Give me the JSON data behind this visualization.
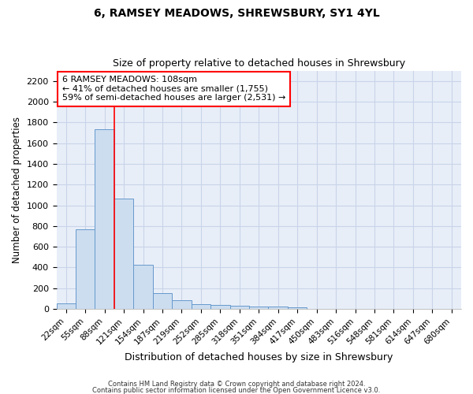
{
  "title": "6, RAMSEY MEADOWS, SHREWSBURY, SY1 4YL",
  "subtitle": "Size of property relative to detached houses in Shrewsbury",
  "xlabel": "Distribution of detached houses by size in Shrewsbury",
  "ylabel": "Number of detached properties",
  "bar_color": "#ccddf0",
  "bar_edge_color": "#6699cc",
  "bin_labels": [
    "22sqm",
    "55sqm",
    "88sqm",
    "121sqm",
    "154sqm",
    "187sqm",
    "219sqm",
    "252sqm",
    "285sqm",
    "318sqm",
    "351sqm",
    "384sqm",
    "417sqm",
    "450sqm",
    "483sqm",
    "516sqm",
    "548sqm",
    "581sqm",
    "614sqm",
    "647sqm",
    "680sqm"
  ],
  "bar_heights": [
    55,
    770,
    1735,
    1065,
    430,
    150,
    83,
    47,
    38,
    30,
    20,
    20,
    17,
    0,
    0,
    0,
    0,
    0,
    0,
    0,
    0
  ],
  "vline_x": 3.0,
  "annotation_text": "6 RAMSEY MEADOWS: 108sqm\n← 41% of detached houses are smaller (1,755)\n59% of semi-detached houses are larger (2,531) →",
  "annotation_box_color": "white",
  "annotation_box_edge_color": "red",
  "vline_color": "red",
  "ylim": [
    0,
    2300
  ],
  "yticks": [
    0,
    200,
    400,
    600,
    800,
    1000,
    1200,
    1400,
    1600,
    1800,
    2000,
    2200
  ],
  "grid_color": "#c8d4e8",
  "background_color": "#e8eef8",
  "footnote1": "Contains HM Land Registry data © Crown copyright and database right 2024.",
  "footnote2": "Contains public sector information licensed under the Open Government Licence v3.0."
}
